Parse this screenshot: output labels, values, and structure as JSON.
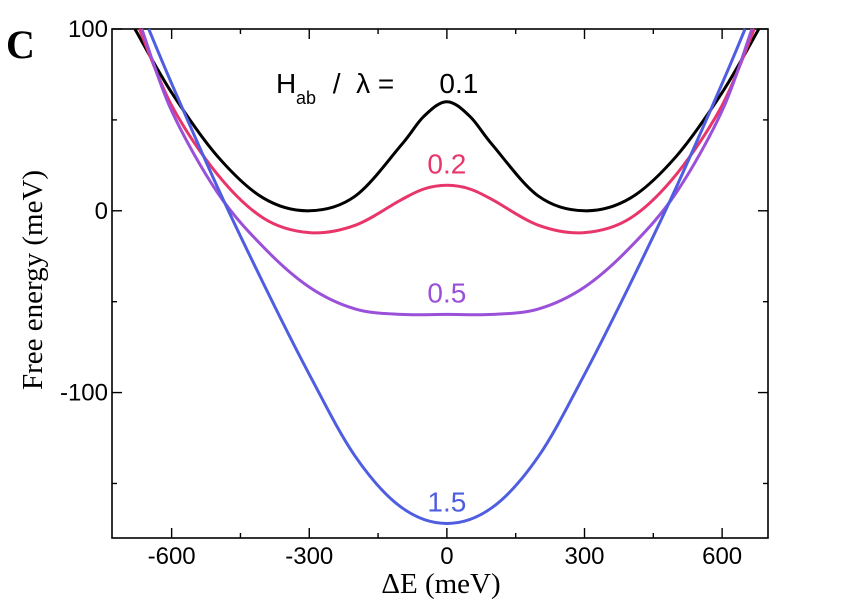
{
  "chart_data": {
    "type": "line",
    "panel_label": "C",
    "xlabel": "ΔE (meV)",
    "ylabel": "Free energy (meV)",
    "xlim": [
      -730,
      700
    ],
    "ylim": [
      -180,
      100
    ],
    "xticks": [
      -600,
      -300,
      0,
      300,
      600
    ],
    "yticks": [
      -100,
      0,
      100
    ],
    "xtick_labels": [
      "-600",
      "-300",
      "0",
      "300",
      "600"
    ],
    "ytick_labels": [
      "-100",
      "0",
      "100"
    ],
    "grid": false,
    "legend_title": {
      "main": "H",
      "sub": "ab",
      "rest": " /  λ = "
    },
    "series": [
      {
        "name": "0.1",
        "color": "#000000",
        "x": [
          -680,
          -600,
          -500,
          -400,
          -300,
          -200,
          -100,
          -50,
          0,
          50,
          100,
          200,
          300,
          400,
          500,
          600,
          680
        ],
        "y": [
          100,
          65,
          30,
          7,
          0,
          8,
          36,
          52,
          60,
          52,
          36,
          8,
          0,
          7,
          30,
          65,
          100
        ]
      },
      {
        "name": "0.2",
        "color": "#e8366b",
        "x": [
          -670,
          -600,
          -500,
          -400,
          -300,
          -200,
          -100,
          -50,
          0,
          50,
          100,
          200,
          300,
          400,
          500,
          600,
          670
        ],
        "y": [
          100,
          58,
          20,
          -4,
          -12,
          -8,
          6,
          12,
          14,
          12,
          6,
          -8,
          -12,
          -4,
          20,
          58,
          100
        ]
      },
      {
        "name": "0.5",
        "color": "#9a50d8",
        "x": [
          -665,
          -600,
          -500,
          -400,
          -300,
          -200,
          -100,
          0,
          100,
          200,
          300,
          400,
          500,
          600,
          665
        ],
        "y": [
          100,
          55,
          10,
          -20,
          -42,
          -54,
          -57,
          -57,
          -57,
          -54,
          -42,
          -20,
          10,
          55,
          100
        ]
      },
      {
        "name": "1.5",
        "color": "#4f5ee0",
        "x": [
          -650,
          -600,
          -500,
          -400,
          -300,
          -200,
          -100,
          0,
          100,
          200,
          300,
          400,
          500,
          600,
          650
        ],
        "y": [
          100,
          70,
          13,
          -40,
          -90,
          -135,
          -163,
          -172,
          -163,
          -135,
          -90,
          -40,
          13,
          70,
          100
        ]
      }
    ]
  }
}
